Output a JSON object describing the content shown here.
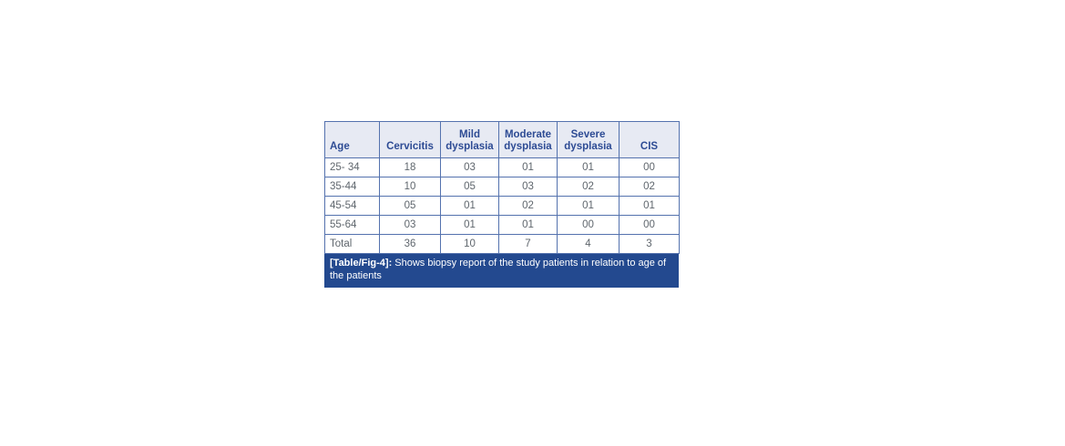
{
  "figure": {
    "caption_label": "[Table/Fig-4]:",
    "caption_text": " Shows biopsy report of the study patients in relation to age of the patients"
  },
  "colors": {
    "header_bg": "#e7eaf3",
    "header_text": "#2d4b94",
    "border": "#5472ae",
    "data_text": "#5f666d",
    "caption_bg": "#23498f",
    "caption_text": "#ffffff"
  },
  "chart_data": {
    "type": "table",
    "title": "[Table/Fig-4]: Shows biopsy report of the study patients in relation to age of the patients",
    "columns": [
      "Age",
      "Cervicitis",
      "Mild dysplasia",
      "Moderate dysplasia",
      "Severe dysplasia",
      "CIS"
    ],
    "rows": [
      [
        "25- 34",
        "18",
        "03",
        "01",
        "01",
        "00"
      ],
      [
        "35-44",
        "10",
        "05",
        "03",
        "02",
        "02"
      ],
      [
        "45-54",
        "05",
        "01",
        "02",
        "01",
        "01"
      ],
      [
        "55-64",
        "03",
        "01",
        "01",
        "00",
        "00"
      ],
      [
        "Total",
        "36",
        "10",
        "7",
        "4",
        "3"
      ]
    ]
  },
  "table": {
    "headers": {
      "age": "Age",
      "cervicitis": "Cervicitis",
      "mild": "Mild dysplasia",
      "moderate": "Moderate dysplasia",
      "severe": "Severe dysplasia",
      "cis": "CIS"
    },
    "rows": [
      [
        "25- 34",
        "18",
        "03",
        "01",
        "01",
        "00"
      ],
      [
        "35-44",
        "10",
        "05",
        "03",
        "02",
        "02"
      ],
      [
        "45-54",
        "05",
        "01",
        "02",
        "01",
        "01"
      ],
      [
        "55-64",
        "03",
        "01",
        "01",
        "00",
        "00"
      ],
      [
        "Total",
        "36",
        "10",
        "7",
        "4",
        "3"
      ]
    ]
  }
}
